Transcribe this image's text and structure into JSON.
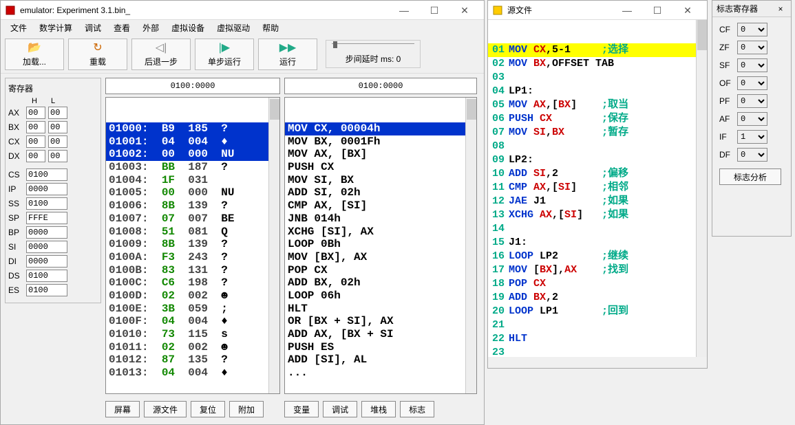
{
  "main_window": {
    "title": "emulator: Experiment 3.1.bin_",
    "menu": [
      "文件",
      "数学计算",
      "调试",
      "查看",
      "外部",
      "虚拟设备",
      "虚拟驱动",
      "帮助"
    ],
    "toolbar": {
      "load": "加载...",
      "reload": "重载",
      "step_back": "后退一步",
      "step": "单步运行",
      "run": "运行",
      "delay_label": "步间延时 ms: 0"
    },
    "registers": {
      "title": "寄存器",
      "hl": [
        "H",
        "L"
      ],
      "pairs": [
        {
          "name": "AX",
          "h": "00",
          "l": "00"
        },
        {
          "name": "BX",
          "h": "00",
          "l": "00"
        },
        {
          "name": "CX",
          "h": "00",
          "l": "00"
        },
        {
          "name": "DX",
          "h": "00",
          "l": "00"
        }
      ],
      "wide": [
        {
          "name": "CS",
          "val": "0100"
        },
        {
          "name": "IP",
          "val": "0000"
        },
        {
          "name": "SS",
          "val": "0100"
        },
        {
          "name": "SP",
          "val": "FFFE"
        },
        {
          "name": "BP",
          "val": "0000"
        },
        {
          "name": "SI",
          "val": "0000"
        },
        {
          "name": "DI",
          "val": "0000"
        },
        {
          "name": "DS",
          "val": "0100"
        },
        {
          "name": "ES",
          "val": "0100"
        }
      ]
    },
    "mem_left": {
      "addr": "0100:0000",
      "rows": [
        {
          "a": "01000:",
          "h": "B9",
          "d": "185",
          "s": "?",
          "sel": true
        },
        {
          "a": "01001:",
          "h": "04",
          "d": "004",
          "s": "♦",
          "sel": true
        },
        {
          "a": "01002:",
          "h": "00",
          "d": "000",
          "s": "NU",
          "sel": true
        },
        {
          "a": "01003:",
          "h": "BB",
          "d": "187",
          "s": "?"
        },
        {
          "a": "01004:",
          "h": "1F",
          "d": "031",
          "s": " "
        },
        {
          "a": "01005:",
          "h": "00",
          "d": "000",
          "s": "NU"
        },
        {
          "a": "01006:",
          "h": "8B",
          "d": "139",
          "s": "?"
        },
        {
          "a": "01007:",
          "h": "07",
          "d": "007",
          "s": "BE"
        },
        {
          "a": "01008:",
          "h": "51",
          "d": "081",
          "s": "Q"
        },
        {
          "a": "01009:",
          "h": "8B",
          "d": "139",
          "s": "?"
        },
        {
          "a": "0100A:",
          "h": "F3",
          "d": "243",
          "s": "?"
        },
        {
          "a": "0100B:",
          "h": "83",
          "d": "131",
          "s": "?"
        },
        {
          "a": "0100C:",
          "h": "C6",
          "d": "198",
          "s": "?"
        },
        {
          "a": "0100D:",
          "h": "02",
          "d": "002",
          "s": "☻"
        },
        {
          "a": "0100E:",
          "h": "3B",
          "d": "059",
          "s": ";"
        },
        {
          "a": "0100F:",
          "h": "04",
          "d": "004",
          "s": "♦"
        },
        {
          "a": "01010:",
          "h": "73",
          "d": "115",
          "s": "s"
        },
        {
          "a": "01011:",
          "h": "02",
          "d": "002",
          "s": "☻"
        },
        {
          "a": "01012:",
          "h": "87",
          "d": "135",
          "s": "?"
        },
        {
          "a": "01013:",
          "h": "04",
          "d": "004",
          "s": "♦"
        }
      ]
    },
    "mem_right": {
      "addr": "0100:0000",
      "rows": [
        {
          "t": "MOV CX, 00004h",
          "sel": true
        },
        {
          "t": "MOV BX, 0001Fh"
        },
        {
          "t": "MOV AX, [BX]"
        },
        {
          "t": "PUSH CX"
        },
        {
          "t": "MOV SI, BX"
        },
        {
          "t": "ADD SI, 02h"
        },
        {
          "t": "CMP AX, [SI]"
        },
        {
          "t": "JNB 014h"
        },
        {
          "t": "XCHG [SI], AX"
        },
        {
          "t": "LOOP 0Bh"
        },
        {
          "t": "MOV [BX], AX"
        },
        {
          "t": "POP CX"
        },
        {
          "t": "ADD BX, 02h"
        },
        {
          "t": "LOOP 06h"
        },
        {
          "t": "HLT"
        },
        {
          "t": "OR [BX + SI], AX"
        },
        {
          "t": "ADD AX, [BX + SI"
        },
        {
          "t": "PUSH ES"
        },
        {
          "t": "ADD [SI], AL"
        },
        {
          "t": "..."
        }
      ]
    },
    "bottom_buttons": [
      "屏幕",
      "源文件",
      "复位",
      "附加",
      "变量",
      "调试",
      "堆栈",
      "标志"
    ]
  },
  "src_window": {
    "title": "源文件",
    "lines": [
      {
        "n": "01",
        "hl": true,
        "parts": [
          [
            "kw-blue",
            "MOV "
          ],
          [
            "kw-red",
            "CX"
          ],
          [
            "kw-blk",
            ",5-1"
          ],
          [
            "kw-grn",
            "     ;选择"
          ]
        ]
      },
      {
        "n": "02",
        "parts": [
          [
            "kw-blue",
            "MOV "
          ],
          [
            "kw-red",
            "BX"
          ],
          [
            "kw-blk",
            ",OFFSET TAB"
          ]
        ]
      },
      {
        "n": "03",
        "parts": []
      },
      {
        "n": "04",
        "parts": [
          [
            "kw-blk",
            "LP1:"
          ]
        ]
      },
      {
        "n": "05",
        "parts": [
          [
            "kw-blue",
            "MOV "
          ],
          [
            "kw-red",
            "AX"
          ],
          [
            "kw-blk",
            ",["
          ],
          [
            "kw-red",
            "BX"
          ],
          [
            "kw-blk",
            "]"
          ],
          [
            "kw-grn",
            "    ;取当"
          ]
        ]
      },
      {
        "n": "06",
        "parts": [
          [
            "kw-blue",
            "PUSH "
          ],
          [
            "kw-red",
            "CX"
          ],
          [
            "kw-grn",
            "        ;保存"
          ]
        ]
      },
      {
        "n": "07",
        "parts": [
          [
            "kw-blue",
            "MOV "
          ],
          [
            "kw-red",
            "SI"
          ],
          [
            "kw-blk",
            ","
          ],
          [
            "kw-red",
            "BX"
          ],
          [
            "kw-grn",
            "      ;暂存"
          ]
        ]
      },
      {
        "n": "08",
        "parts": []
      },
      {
        "n": "09",
        "parts": [
          [
            "kw-blk",
            "LP2:"
          ]
        ]
      },
      {
        "n": "10",
        "parts": [
          [
            "kw-blue",
            "ADD "
          ],
          [
            "kw-red",
            "SI"
          ],
          [
            "kw-blk",
            ",2"
          ],
          [
            "kw-grn",
            "       ;偏移"
          ]
        ]
      },
      {
        "n": "11",
        "parts": [
          [
            "kw-blue",
            "CMP "
          ],
          [
            "kw-red",
            "AX"
          ],
          [
            "kw-blk",
            ",["
          ],
          [
            "kw-red",
            "SI"
          ],
          [
            "kw-blk",
            "]"
          ],
          [
            "kw-grn",
            "    ;相邻"
          ]
        ]
      },
      {
        "n": "12",
        "parts": [
          [
            "kw-blue",
            "JAE "
          ],
          [
            "kw-blk",
            "J1"
          ],
          [
            "kw-grn",
            "         ;如果"
          ]
        ]
      },
      {
        "n": "13",
        "parts": [
          [
            "kw-blue",
            "XCHG "
          ],
          [
            "kw-red",
            "AX"
          ],
          [
            "kw-blk",
            ",["
          ],
          [
            "kw-red",
            "SI"
          ],
          [
            "kw-blk",
            "]"
          ],
          [
            "kw-grn",
            "   ;如果"
          ]
        ]
      },
      {
        "n": "14",
        "parts": []
      },
      {
        "n": "15",
        "parts": [
          [
            "kw-blk",
            "J1:"
          ]
        ]
      },
      {
        "n": "16",
        "parts": [
          [
            "kw-blue",
            "LOOP "
          ],
          [
            "kw-blk",
            "LP2"
          ],
          [
            "kw-grn",
            "       ;继续"
          ]
        ]
      },
      {
        "n": "17",
        "parts": [
          [
            "kw-blue",
            "MOV "
          ],
          [
            "kw-blk",
            "["
          ],
          [
            "kw-red",
            "BX"
          ],
          [
            "kw-blk",
            "],"
          ],
          [
            "kw-red",
            "AX"
          ],
          [
            "kw-grn",
            "    ;找到"
          ]
        ]
      },
      {
        "n": "18",
        "parts": [
          [
            "kw-blue",
            "POP "
          ],
          [
            "kw-red",
            "CX"
          ]
        ]
      },
      {
        "n": "19",
        "parts": [
          [
            "kw-blue",
            "ADD "
          ],
          [
            "kw-red",
            "BX"
          ],
          [
            "kw-blk",
            ",2"
          ]
        ]
      },
      {
        "n": "20",
        "parts": [
          [
            "kw-blue",
            "LOOP "
          ],
          [
            "kw-blk",
            "LP1"
          ],
          [
            "kw-grn",
            "       ;回到"
          ]
        ]
      },
      {
        "n": "21",
        "parts": []
      },
      {
        "n": "22",
        "parts": [
          [
            "kw-blue",
            "HLT"
          ]
        ]
      },
      {
        "n": "23",
        "parts": []
      }
    ]
  },
  "flags_window": {
    "title": "标志寄存器",
    "flags": [
      {
        "name": "CF",
        "val": "0"
      },
      {
        "name": "ZF",
        "val": "0"
      },
      {
        "name": "SF",
        "val": "0"
      },
      {
        "name": "OF",
        "val": "0"
      },
      {
        "name": "PF",
        "val": "0"
      },
      {
        "name": "AF",
        "val": "0"
      },
      {
        "name": "IF",
        "val": "1"
      },
      {
        "name": "DF",
        "val": "0"
      }
    ],
    "analyze": "标志分析"
  }
}
